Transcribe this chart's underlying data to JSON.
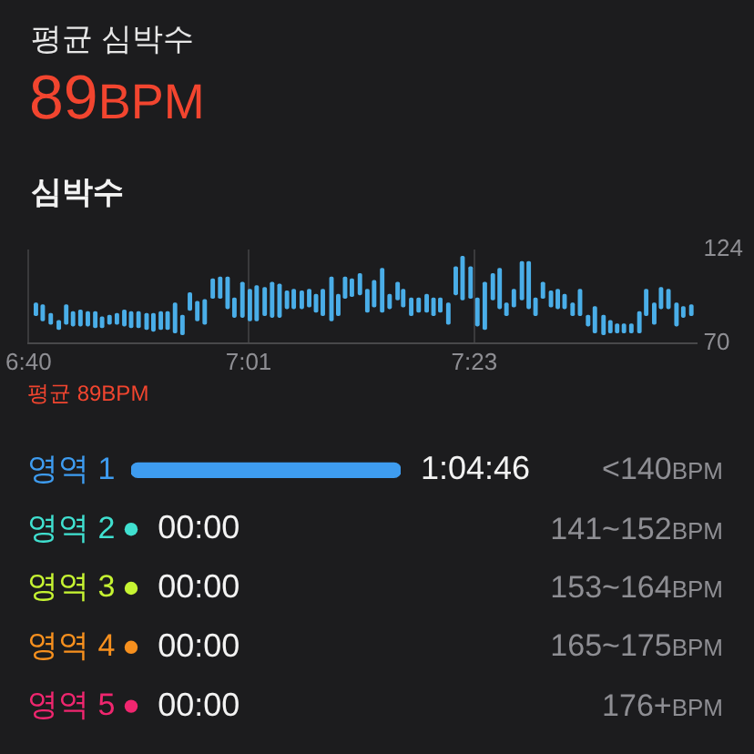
{
  "chart_data": [
    {
      "type": "other",
      "title": "평균 심박수",
      "annotations": [
        "89BPM"
      ]
    },
    {
      "type": "bar",
      "title": "심박수",
      "x": [
        6.679,
        6.69,
        6.703,
        6.716,
        6.728,
        6.739,
        6.751,
        6.763,
        6.775,
        6.786,
        6.798,
        6.81,
        6.822,
        6.833,
        6.845,
        6.858,
        6.869,
        6.881,
        6.892,
        6.904,
        6.916,
        6.928,
        6.94,
        6.952,
        6.965,
        6.977,
        6.989,
        7.0,
        7.013,
        7.025,
        7.036,
        7.049,
        7.061,
        7.073,
        7.085,
        7.096,
        7.109,
        7.121,
        7.132,
        7.143,
        7.157,
        7.168,
        7.179,
        7.19,
        7.203,
        7.215,
        7.226,
        7.239,
        7.251,
        7.264,
        7.273,
        7.286,
        7.298,
        7.311,
        7.322,
        7.333,
        7.346,
        7.358,
        7.369,
        7.382,
        7.393,
        7.405,
        7.418,
        7.429,
        7.44,
        7.452,
        7.465,
        7.476,
        7.487,
        7.499,
        7.512,
        7.523,
        7.534,
        7.547,
        7.559,
        7.572,
        7.583,
        7.597,
        7.608,
        7.619,
        7.63,
        7.642,
        7.655,
        7.666,
        7.679,
        7.69,
        7.702,
        7.715,
        7.726,
        7.739
      ],
      "base": [
        86,
        83,
        81,
        78,
        81,
        80,
        80,
        80,
        79,
        79,
        81,
        81,
        80,
        79,
        79,
        78,
        77,
        78,
        78,
        76,
        75,
        89,
        83,
        81,
        96,
        96,
        90,
        85,
        85,
        83,
        83,
        86,
        85,
        85,
        90,
        90,
        90,
        91,
        88,
        86,
        83,
        86,
        96,
        97,
        98,
        88,
        91,
        88,
        90,
        95,
        91,
        86,
        88,
        88,
        86,
        88,
        81,
        98,
        95,
        96,
        80,
        78,
        95,
        90,
        86,
        91,
        95,
        90,
        86,
        96,
        91,
        90,
        90,
        86,
        86,
        80,
        76,
        75,
        76,
        76,
        76,
        76,
        76,
        86,
        81,
        90,
        90,
        80,
        85,
        86
      ],
      "values": [
        7,
        9,
        6,
        5,
        11,
        8,
        9,
        8,
        9,
        6,
        5,
        6,
        9,
        9,
        9,
        9,
        10,
        10,
        10,
        17,
        11,
        10,
        11,
        14,
        11,
        12,
        18,
        11,
        20,
        18,
        20,
        16,
        20,
        19,
        10,
        11,
        10,
        10,
        10,
        15,
        25,
        12,
        12,
        10,
        12,
        13,
        15,
        25,
        8,
        10,
        10,
        10,
        8,
        10,
        10,
        8,
        12,
        16,
        25,
        18,
        16,
        27,
        15,
        23,
        7,
        10,
        22,
        27,
        10,
        9,
        9,
        11,
        8,
        7,
        15,
        6,
        15,
        11,
        7,
        5,
        5,
        5,
        12,
        15,
        12,
        12,
        11,
        13,
        6,
        6
      ],
      "color": "#4aaee8",
      "xlim": [
        6.667,
        7.747
      ],
      "xticks": [
        {
          "value": 6.667,
          "label": "6:40"
        },
        {
          "value": 7.023,
          "label": "7:01"
        },
        {
          "value": 7.388,
          "label": "7:23"
        }
      ],
      "ylim": [
        70,
        124
      ],
      "yticks": [
        70,
        124
      ],
      "grid": "x",
      "annotations": [
        "평균 89BPM"
      ]
    },
    {
      "type": "bar",
      "orientation": "horizontal",
      "categories": [
        "영역 1",
        "영역 2",
        "영역 3",
        "영역 4",
        "영역 5"
      ],
      "tick_labels": "y",
      "series": [
        {
          "type": "bar",
          "values": [
            1.0794,
            null,
            null,
            null,
            null
          ],
          "colors": [
            "#3e9cf0",
            "#40e0d0",
            "#c6f432",
            "#f7901e",
            "#f0266f"
          ],
          "value_labels": [
            "1:04:46",
            null,
            null,
            null,
            null
          ]
        },
        {
          "type": "scatter",
          "values": [
            null,
            0,
            0,
            0,
            0
          ],
          "colors": [
            "#3e9cf0",
            "#40e0d0",
            "#c6f432",
            "#f7901e",
            "#f0266f"
          ],
          "marker": "circle",
          "value_labels": [
            null,
            "00:00",
            "00:00",
            "00:00",
            "00:00"
          ]
        }
      ],
      "annotations": [
        "<140BPM",
        "141~152BPM",
        "153~164BPM",
        "165~175BPM",
        "176+BPM"
      ]
    }
  ]
}
